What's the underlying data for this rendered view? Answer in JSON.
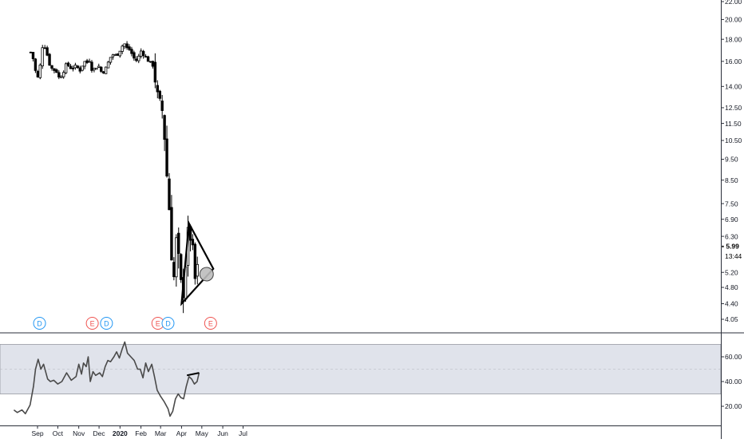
{
  "chart_data": [
    {
      "type": "candlestick",
      "scale": "log",
      "ylim": [
        3.85,
        22.0
      ],
      "y_ticks": [
        "22.00",
        "20.00",
        "18.00",
        "16.00",
        "14.00",
        "12.50",
        "11.50",
        "10.50",
        "9.50",
        "8.50",
        "7.50",
        "6.90",
        "6.30",
        "5.20",
        "4.80",
        "4.40",
        "4.05"
      ],
      "last_price": "5.99",
      "countdown": "13:44",
      "x_ticks": [
        "Sep",
        "Oct",
        "Nov",
        "Dec",
        "2020",
        "Feb",
        "Mar",
        "Apr",
        "May",
        "Jun",
        "Jul"
      ],
      "x_ticks_bold": "2020",
      "close_path": [
        [
          "2019-08-22",
          16.8
        ],
        [
          "2019-08-27",
          16.0
        ],
        [
          "2019-08-30",
          14.8
        ],
        [
          "2019-09-03",
          14.6
        ],
        [
          "2019-09-06",
          16.3
        ],
        [
          "2019-09-09",
          17.6
        ],
        [
          "2019-09-12",
          17.3
        ],
        [
          "2019-09-16",
          16.4
        ],
        [
          "2019-09-20",
          15.5
        ],
        [
          "2019-09-25",
          15.3
        ],
        [
          "2019-10-01",
          15.1
        ],
        [
          "2019-10-03",
          14.6
        ],
        [
          "2019-10-08",
          15.0
        ],
        [
          "2019-10-14",
          15.8
        ],
        [
          "2019-10-21",
          15.4
        ],
        [
          "2019-10-28",
          15.6
        ],
        [
          "2019-11-04",
          15.2
        ],
        [
          "2019-11-08",
          16.0
        ],
        [
          "2019-11-14",
          15.9
        ],
        [
          "2019-11-18",
          16.2
        ],
        [
          "2019-11-21",
          15.1
        ],
        [
          "2019-11-25",
          15.5
        ],
        [
          "2019-12-02",
          15.6
        ],
        [
          "2019-12-05",
          15.0
        ],
        [
          "2019-12-10",
          15.3
        ],
        [
          "2019-12-16",
          16.1
        ],
        [
          "2019-12-20",
          16.6
        ],
        [
          "2019-12-27",
          16.5
        ],
        [
          "2020-01-03",
          17.2
        ],
        [
          "2020-01-07",
          17.7
        ],
        [
          "2020-01-10",
          17.2
        ],
        [
          "2020-01-16",
          17.0
        ],
        [
          "2020-01-21",
          16.3
        ],
        [
          "2020-01-27",
          16.0
        ],
        [
          "2020-01-31",
          17.0
        ],
        [
          "2020-02-05",
          16.6
        ],
        [
          "2020-02-10",
          16.2
        ],
        [
          "2020-02-14",
          15.9
        ],
        [
          "2020-02-20",
          15.6
        ],
        [
          "2020-02-24",
          13.6
        ],
        [
          "2020-02-27",
          12.8
        ],
        [
          "2020-03-03",
          12.5
        ],
        [
          "2020-03-06",
          11.2
        ],
        [
          "2020-03-09",
          9.6
        ],
        [
          "2020-03-11",
          8.3
        ],
        [
          "2020-03-13",
          7.6
        ],
        [
          "2020-03-16",
          6.6
        ],
        [
          "2020-03-18",
          5.3
        ],
        [
          "2020-03-20",
          4.9
        ],
        [
          "2020-03-23",
          5.6
        ],
        [
          "2020-03-25",
          6.5
        ],
        [
          "2020-03-27",
          5.7
        ],
        [
          "2020-03-31",
          4.9
        ],
        [
          "2020-04-02",
          4.5
        ],
        [
          "2020-04-06",
          5.0
        ],
        [
          "2020-04-09",
          6.4
        ],
        [
          "2020-04-14",
          6.3
        ],
        [
          "2020-04-17",
          5.9
        ],
        [
          "2020-04-21",
          5.0
        ],
        [
          "2020-04-23",
          4.9
        ],
        [
          "2020-04-27",
          5.99
        ]
      ],
      "event_markers": [
        {
          "date": "2019-09-04",
          "label": "D",
          "color": "#2196f3"
        },
        {
          "date": "2019-11-21",
          "label": "E",
          "color": "#ef5350"
        },
        {
          "date": "2019-12-12",
          "label": "D",
          "color": "#2196f3"
        },
        {
          "date": "2020-02-26",
          "label": "E",
          "color": "#ef5350"
        },
        {
          "date": "2020-03-12",
          "label": "D",
          "color": "#2196f3"
        },
        {
          "date": "2020-05-14",
          "label": "E",
          "color": "#ef5350"
        }
      ],
      "triangle_drawing": [
        [
          "2020-04-01",
          4.4
        ],
        [
          "2020-04-12",
          6.75
        ],
        [
          "2020-05-18",
          5.3
        ]
      ],
      "target_circle": [
        "2020-05-08",
        5.15
      ]
    },
    {
      "type": "line",
      "series": [
        {
          "values": [
            [
              "2019-07-28",
              17
            ],
            [
              "2019-08-02",
              15
            ],
            [
              "2019-08-09",
              17
            ],
            [
              "2019-08-14",
              14
            ],
            [
              "2019-08-21",
              21
            ],
            [
              "2019-08-26",
              36
            ],
            [
              "2019-08-29",
              50
            ],
            [
              "2019-09-02",
              58
            ],
            [
              "2019-09-06",
              50
            ],
            [
              "2019-09-10",
              54
            ],
            [
              "2019-09-16",
              42
            ],
            [
              "2019-09-20",
              40
            ],
            [
              "2019-09-25",
              41
            ],
            [
              "2019-10-01",
              38
            ],
            [
              "2019-10-07",
              40
            ],
            [
              "2019-10-14",
              47
            ],
            [
              "2019-10-21",
              41
            ],
            [
              "2019-10-28",
              44
            ],
            [
              "2019-11-01",
              54
            ],
            [
              "2019-11-05",
              46
            ],
            [
              "2019-11-08",
              55
            ],
            [
              "2019-11-12",
              52
            ],
            [
              "2019-11-15",
              60
            ],
            [
              "2019-11-18",
              40
            ],
            [
              "2019-11-22",
              48
            ],
            [
              "2019-11-26",
              45
            ],
            [
              "2019-12-02",
              47
            ],
            [
              "2019-12-06",
              44
            ],
            [
              "2019-12-10",
              52
            ],
            [
              "2019-12-14",
              57
            ],
            [
              "2019-12-18",
              56
            ],
            [
              "2019-12-23",
              60
            ],
            [
              "2019-12-27",
              64
            ],
            [
              "2019-12-31",
              59
            ],
            [
              "2020-01-04",
              66
            ],
            [
              "2020-01-08",
              72
            ],
            [
              "2020-01-12",
              63
            ],
            [
              "2020-01-17",
              60
            ],
            [
              "2020-01-22",
              57
            ],
            [
              "2020-01-27",
              50
            ],
            [
              "2020-01-31",
              50
            ],
            [
              "2020-02-04",
              43
            ],
            [
              "2020-02-08",
              55
            ],
            [
              "2020-02-12",
              48
            ],
            [
              "2020-02-17",
              54
            ],
            [
              "2020-02-21",
              44
            ],
            [
              "2020-02-25",
              33
            ],
            [
              "2020-03-01",
              28
            ],
            [
              "2020-03-06",
              24
            ],
            [
              "2020-03-12",
              18
            ],
            [
              "2020-03-15",
              12
            ],
            [
              "2020-03-19",
              16
            ],
            [
              "2020-03-23",
              26
            ],
            [
              "2020-03-27",
              30
            ],
            [
              "2020-03-31",
              27
            ],
            [
              "2020-04-04",
              26
            ],
            [
              "2020-04-08",
              36
            ],
            [
              "2020-04-12",
              44
            ],
            [
              "2020-04-16",
              42
            ],
            [
              "2020-04-20",
              38
            ],
            [
              "2020-04-24",
              40
            ],
            [
              "2020-04-27",
              47
            ]
          ]
        }
      ],
      "ylim": [
        10,
        75
      ],
      "y_ticks": [
        "60.00",
        "40.00",
        "20.00"
      ],
      "band": [
        30,
        70
      ],
      "midline": 50,
      "trendline": [
        [
          "2020-04-09",
          45
        ],
        [
          "2020-04-27",
          47
        ]
      ]
    }
  ],
  "colors": {
    "up_fill": "#ffffff",
    "down_fill": "#000000",
    "line": "#000000",
    "band": "#e0e3eb",
    "grid": "#f0f3fa",
    "axis_text": "#131722",
    "marker_red": "#ef5350",
    "marker_blue": "#2196f3",
    "circle": "#9e9e9e"
  }
}
